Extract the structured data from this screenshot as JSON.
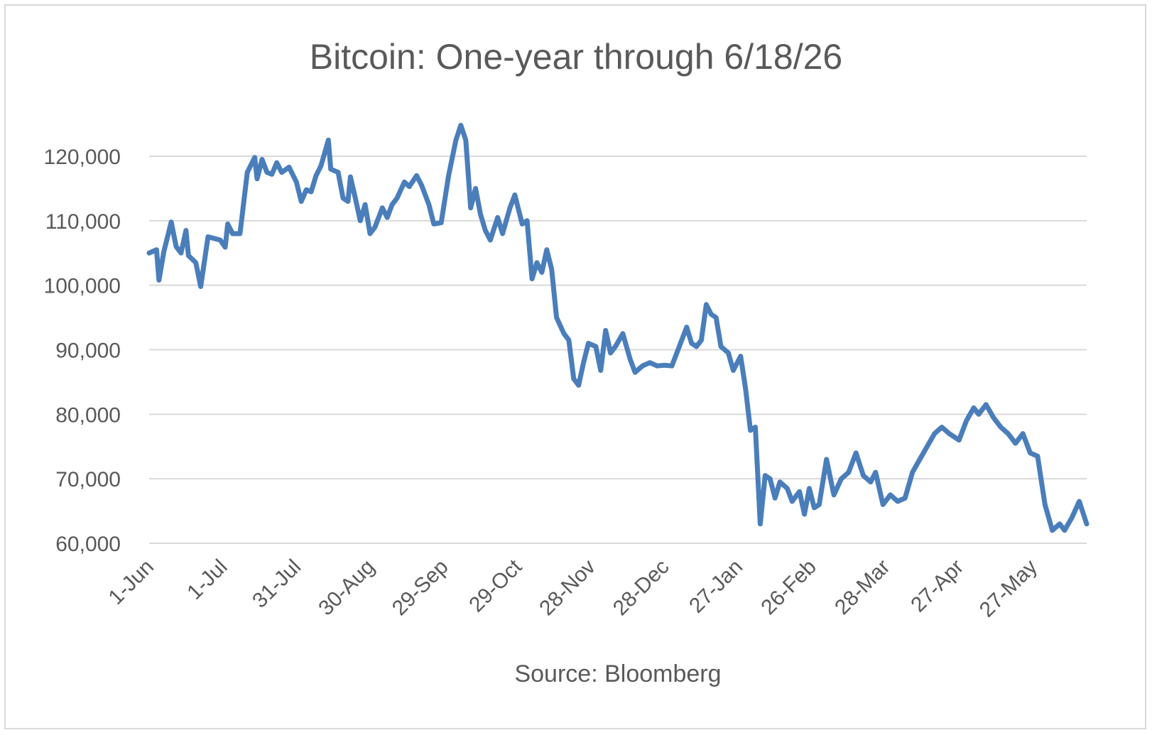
{
  "chart_data": {
    "type": "line",
    "title": "Bitcoin: One-year through 6/18/26",
    "source": "Source: Bloomberg",
    "xlabel": "",
    "ylabel": "",
    "ylim": [
      60000,
      120000
    ],
    "yticks": [
      60000,
      70000,
      80000,
      90000,
      100000,
      110000,
      120000
    ],
    "ytick_labels": [
      "60,000",
      "70,000",
      "80,000",
      "90,000",
      "100,000",
      "110,000",
      "120,000"
    ],
    "xtick_labels": [
      "1-Jun",
      "1-Jul",
      "31-Jul",
      "30-Aug",
      "29-Sep",
      "29-Oct",
      "28-Nov",
      "28-Dec",
      "27-Jan",
      "26-Feb",
      "28-Mar",
      "27-Apr",
      "27-May"
    ],
    "grid": true,
    "legend": "none",
    "line_color": "#4a7ebb",
    "series": [
      {
        "x_start": "1-Jun",
        "x_end": "18-Jun",
        "points": [
          [
            "2025-06-01",
            105000
          ],
          [
            "2025-06-04",
            105500
          ],
          [
            "2025-06-05",
            100800
          ],
          [
            "2025-06-07",
            105200
          ],
          [
            "2025-06-10",
            109800
          ],
          [
            "2025-06-12",
            106000
          ],
          [
            "2025-06-14",
            105000
          ],
          [
            "2025-06-16",
            108500
          ],
          [
            "2025-06-17",
            104600
          ],
          [
            "2025-06-20",
            103500
          ],
          [
            "2025-06-22",
            99800
          ],
          [
            "2025-06-25",
            107500
          ],
          [
            "2025-06-28",
            107200
          ],
          [
            "2025-06-30",
            107000
          ],
          [
            "2025-07-02",
            105900
          ],
          [
            "2025-07-03",
            109500
          ],
          [
            "2025-07-05",
            108000
          ],
          [
            "2025-07-08",
            108000
          ],
          [
            "2025-07-11",
            117500
          ],
          [
            "2025-07-14",
            119800
          ],
          [
            "2025-07-15",
            116500
          ],
          [
            "2025-07-17",
            119500
          ],
          [
            "2025-07-19",
            117500
          ],
          [
            "2025-07-21",
            117200
          ],
          [
            "2025-07-23",
            119000
          ],
          [
            "2025-07-25",
            117500
          ],
          [
            "2025-07-28",
            118300
          ],
          [
            "2025-07-31",
            116000
          ],
          [
            "2025-08-02",
            113000
          ],
          [
            "2025-08-04",
            114800
          ],
          [
            "2025-08-06",
            114500
          ],
          [
            "2025-08-08",
            117000
          ],
          [
            "2025-08-10",
            118500
          ],
          [
            "2025-08-13",
            122500
          ],
          [
            "2025-08-14",
            118000
          ],
          [
            "2025-08-17",
            117500
          ],
          [
            "2025-08-19",
            113500
          ],
          [
            "2025-08-21",
            113000
          ],
          [
            "2025-08-22",
            116800
          ],
          [
            "2025-08-24",
            113500
          ],
          [
            "2025-08-26",
            110000
          ],
          [
            "2025-08-28",
            112500
          ],
          [
            "2025-08-30",
            108000
          ],
          [
            "2025-09-01",
            109000
          ],
          [
            "2025-09-04",
            112000
          ],
          [
            "2025-09-06",
            110500
          ],
          [
            "2025-09-08",
            112500
          ],
          [
            "2025-09-10",
            113500
          ],
          [
            "2025-09-13",
            116000
          ],
          [
            "2025-09-15",
            115300
          ],
          [
            "2025-09-18",
            117000
          ],
          [
            "2025-09-20",
            115500
          ],
          [
            "2025-09-23",
            112500
          ],
          [
            "2025-09-25",
            109500
          ],
          [
            "2025-09-28",
            109700
          ],
          [
            "2025-10-01",
            117000
          ],
          [
            "2025-10-04",
            122500
          ],
          [
            "2025-10-06",
            124800
          ],
          [
            "2025-10-08",
            122500
          ],
          [
            "2025-10-10",
            112000
          ],
          [
            "2025-10-12",
            115000
          ],
          [
            "2025-10-14",
            111000
          ],
          [
            "2025-10-16",
            108500
          ],
          [
            "2025-10-18",
            107000
          ],
          [
            "2025-10-21",
            110500
          ],
          [
            "2025-10-23",
            108000
          ],
          [
            "2025-10-26",
            112000
          ],
          [
            "2025-10-28",
            114000
          ],
          [
            "2025-10-31",
            109500
          ],
          [
            "2025-11-02",
            110000
          ],
          [
            "2025-11-04",
            101000
          ],
          [
            "2025-11-06",
            103500
          ],
          [
            "2025-11-08",
            102000
          ],
          [
            "2025-11-10",
            105500
          ],
          [
            "2025-11-12",
            102500
          ],
          [
            "2025-11-14",
            95000
          ],
          [
            "2025-11-17",
            92500
          ],
          [
            "2025-11-19",
            91500
          ],
          [
            "2025-11-21",
            85500
          ],
          [
            "2025-11-23",
            84500
          ],
          [
            "2025-11-25",
            88000
          ],
          [
            "2025-11-27",
            91000
          ],
          [
            "2025-11-30",
            90500
          ],
          [
            "2025-12-02",
            86800
          ],
          [
            "2025-12-04",
            93000
          ],
          [
            "2025-12-06",
            89500
          ],
          [
            "2025-12-08",
            90500
          ],
          [
            "2025-12-11",
            92500
          ],
          [
            "2025-12-14",
            88500
          ],
          [
            "2025-12-16",
            86500
          ],
          [
            "2025-12-19",
            87500
          ],
          [
            "2025-12-22",
            88000
          ],
          [
            "2025-12-25",
            87500
          ],
          [
            "2025-12-28",
            87600
          ],
          [
            "2025-12-31",
            87500
          ],
          [
            "2026-01-03",
            90500
          ],
          [
            "2026-01-06",
            93500
          ],
          [
            "2026-01-08",
            91000
          ],
          [
            "2026-01-10",
            90500
          ],
          [
            "2026-01-12",
            91500
          ],
          [
            "2026-01-14",
            97000
          ],
          [
            "2026-01-16",
            95500
          ],
          [
            "2026-01-18",
            95000
          ],
          [
            "2026-01-20",
            90500
          ],
          [
            "2026-01-23",
            89500
          ],
          [
            "2026-01-25",
            86800
          ],
          [
            "2026-01-28",
            89000
          ],
          [
            "2026-01-30",
            84000
          ],
          [
            "2026-02-01",
            77500
          ],
          [
            "2026-02-03",
            78000
          ],
          [
            "2026-02-05",
            63000
          ],
          [
            "2026-02-07",
            70500
          ],
          [
            "2026-02-09",
            70000
          ],
          [
            "2026-02-11",
            67000
          ],
          [
            "2026-02-13",
            69500
          ],
          [
            "2026-02-16",
            68500
          ],
          [
            "2026-02-18",
            66500
          ],
          [
            "2026-02-21",
            68000
          ],
          [
            "2026-02-23",
            64500
          ],
          [
            "2026-02-25",
            68500
          ],
          [
            "2026-02-27",
            65500
          ],
          [
            "2026-03-01",
            66000
          ],
          [
            "2026-03-04",
            73000
          ],
          [
            "2026-03-07",
            67500
          ],
          [
            "2026-03-10",
            70000
          ],
          [
            "2026-03-13",
            71000
          ],
          [
            "2026-03-16",
            74000
          ],
          [
            "2026-03-19",
            70500
          ],
          [
            "2026-03-22",
            69500
          ],
          [
            "2026-03-24",
            71000
          ],
          [
            "2026-03-27",
            66000
          ],
          [
            "2026-03-30",
            67500
          ],
          [
            "2026-04-02",
            66500
          ],
          [
            "2026-04-05",
            67000
          ],
          [
            "2026-04-08",
            71000
          ],
          [
            "2026-04-11",
            73000
          ],
          [
            "2026-04-14",
            75000
          ],
          [
            "2026-04-17",
            77000
          ],
          [
            "2026-04-20",
            78000
          ],
          [
            "2026-04-23",
            77000
          ],
          [
            "2026-04-27",
            76000
          ],
          [
            "2026-04-30",
            79000
          ],
          [
            "2026-05-03",
            81000
          ],
          [
            "2026-05-05",
            80000
          ],
          [
            "2026-05-08",
            81500
          ],
          [
            "2026-05-11",
            79500
          ],
          [
            "2026-05-14",
            78000
          ],
          [
            "2026-05-17",
            77000
          ],
          [
            "2026-05-20",
            75500
          ],
          [
            "2026-05-23",
            77000
          ],
          [
            "2026-05-26",
            74000
          ],
          [
            "2026-05-29",
            73500
          ],
          [
            "2026-06-01",
            66000
          ],
          [
            "2026-06-04",
            62000
          ],
          [
            "2026-06-07",
            63000
          ],
          [
            "2026-06-09",
            62000
          ],
          [
            "2026-06-12",
            64000
          ],
          [
            "2026-06-15",
            66500
          ],
          [
            "2026-06-18",
            63000
          ]
        ]
      }
    ]
  }
}
